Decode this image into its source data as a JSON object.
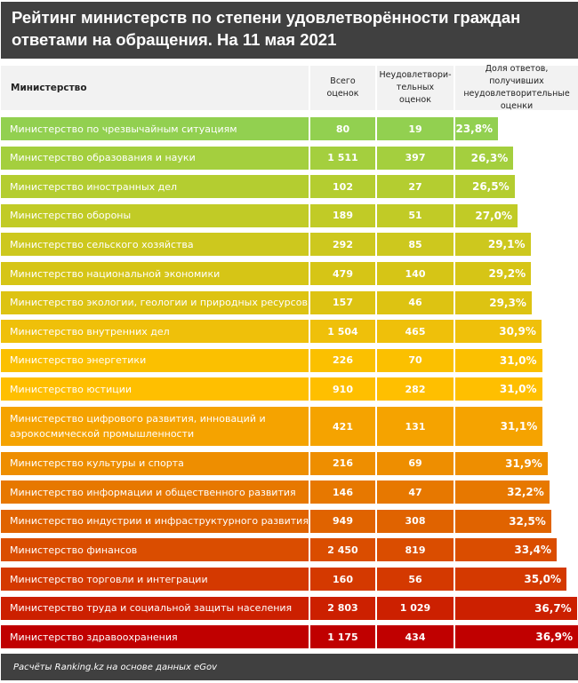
{
  "title": "Рейтинг министерств по степени удовлетворённости граждан ответами на обращения. На 11 мая 2021",
  "headers": {
    "name": "Министерство",
    "total": "Всего оценок",
    "unsat": "Неудовлетвори-тельных оценок",
    "share": "Доля ответов, получивших неудовлетворительные оценки"
  },
  "footer": "Расчёты Ranking.kz на основе данных eGov",
  "chart_data": {
    "type": "table",
    "title": "Рейтинг министерств по степени удовлетворённости граждан ответами на обращения. На 11 мая 2021",
    "columns": [
      "Министерство",
      "Всего оценок",
      "Неудовлетворительных оценок",
      "Доля ответов, получивших неудовлетворительные оценки"
    ],
    "rows": [
      {
        "name": "Министерство по чрезвычайным ситуациям",
        "total": "80",
        "unsat": "19",
        "share": "23,8%",
        "value": 23.8,
        "color": "#92d050"
      },
      {
        "name": "Министерство образования и науки",
        "total": "1 511",
        "unsat": "397",
        "share": "26,3%",
        "value": 26.3,
        "color": "#a4cf3e"
      },
      {
        "name": "Министерство иностранных дел",
        "total": "102",
        "unsat": "27",
        "share": "26,5%",
        "value": 26.5,
        "color": "#b4cd30"
      },
      {
        "name": "Министерство обороны",
        "total": "189",
        "unsat": "51",
        "share": "27,0%",
        "value": 27.0,
        "color": "#c1cb26"
      },
      {
        "name": "Министерство сельского хозяйства",
        "total": "292",
        "unsat": "85",
        "share": "29,1%",
        "value": 29.1,
        "color": "#cdc81e"
      },
      {
        "name": "Министерство национальной экономики",
        "total": "479",
        "unsat": "140",
        "share": "29,2%",
        "value": 29.2,
        "color": "#d6c516"
      },
      {
        "name": "Министерство экологии, геологии и природных ресурсов",
        "total": "157",
        "unsat": "46",
        "share": "29,3%",
        "value": 29.3,
        "color": "#ddc312"
      },
      {
        "name": "Министерство внутренних дел",
        "total": "1 504",
        "unsat": "465",
        "share": "30,9%",
        "value": 30.9,
        "color": "#efc00a"
      },
      {
        "name": "Министерство энергетики",
        "total": "226",
        "unsat": "70",
        "share": "31,0%",
        "value": 31.0,
        "color": "#fbc000"
      },
      {
        "name": "Министерство юстиции",
        "total": "910",
        "unsat": "282",
        "share": "31,0%",
        "value": 31.0,
        "color": "#ffbf00"
      },
      {
        "name": "Министерство цифрового развития, инноваций и аэрокосмической промышленности",
        "total": "421",
        "unsat": "131",
        "share": "31,1%",
        "value": 31.1,
        "color": "#f5a300"
      },
      {
        "name": "Министерство культуры и спорта",
        "total": "216",
        "unsat": "69",
        "share": "31,9%",
        "value": 31.9,
        "color": "#ee8e00"
      },
      {
        "name": "Министерство информации и общественного развития",
        "total": "146",
        "unsat": "47",
        "share": "32,2%",
        "value": 32.2,
        "color": "#e77800"
      },
      {
        "name": "Министерство индустрии и инфраструктурного развития",
        "total": "949",
        "unsat": "308",
        "share": "32,5%",
        "value": 32.5,
        "color": "#e06300"
      },
      {
        "name": "Министерство финансов",
        "total": "2 450",
        "unsat": "819",
        "share": "33,4%",
        "value": 33.4,
        "color": "#da4d00"
      },
      {
        "name": "Министерство торговли и интеграции",
        "total": "160",
        "unsat": "56",
        "share": "35,0%",
        "value": 35.0,
        "color": "#d43900"
      },
      {
        "name": "Министерство труда и социальной защиты населения",
        "total": "2 803",
        "unsat": "1 029",
        "share": "36,7%",
        "value": 36.7,
        "color": "#cc2000"
      },
      {
        "name": "Министерство здравоохранения",
        "total": "1 175",
        "unsat": "434",
        "share": "36,9%",
        "value": 36.9,
        "color": "#c00000"
      }
    ]
  }
}
